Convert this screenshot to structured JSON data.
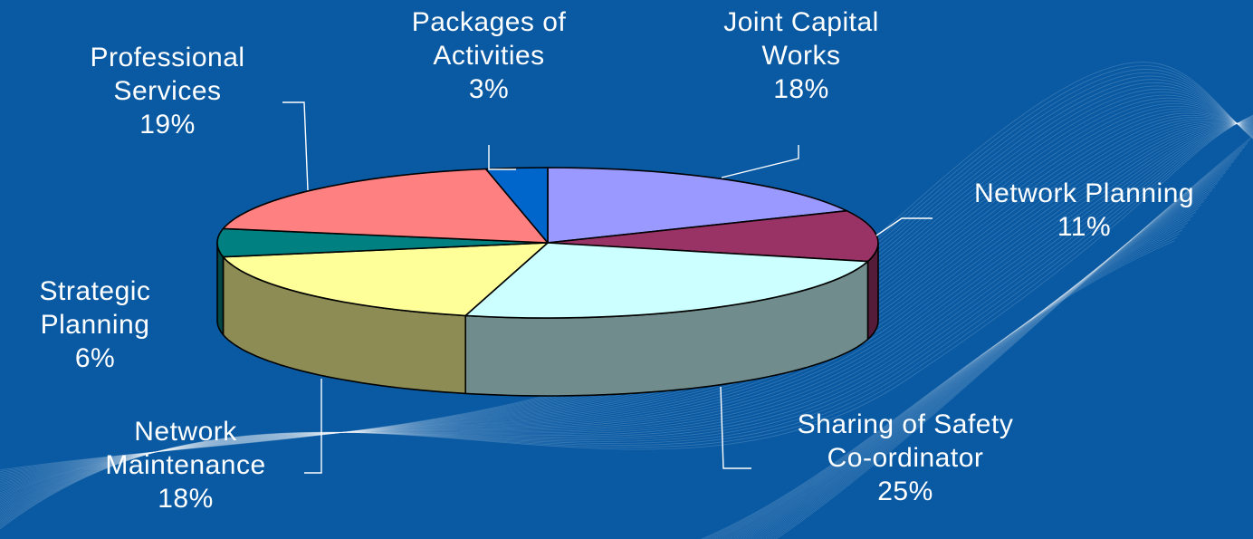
{
  "background": {
    "color": "#0a5aa3",
    "wave_color": "#ffffff"
  },
  "chart_data": {
    "type": "pie",
    "style": "3d",
    "legend": "none",
    "start_angle_deg": 0,
    "direction": "clockwise",
    "slices": [
      {
        "label_lines": [
          "Joint Capital",
          "Works"
        ],
        "value": 18,
        "value_text": "18%",
        "color": "#9999ff"
      },
      {
        "label_lines": [
          "Network Planning"
        ],
        "value": 11,
        "value_text": "11%",
        "color": "#993366"
      },
      {
        "label_lines": [
          "Sharing of Safety",
          "Co-ordinator"
        ],
        "value": 25,
        "value_text": "25%",
        "color": "#ccffff"
      },
      {
        "label_lines": [
          "Network",
          "Maintenance"
        ],
        "value": 18,
        "value_text": "18%",
        "color": "#ffff99"
      },
      {
        "label_lines": [
          "Strategic",
          "Planning"
        ],
        "value": 6,
        "value_text": "6%",
        "color": "#008080"
      },
      {
        "label_lines": [
          "Professional",
          "Services"
        ],
        "value": 19,
        "value_text": "19%",
        "color": "#ff8080"
      },
      {
        "label_lines": [
          "Packages of",
          "Activities"
        ],
        "value": 3,
        "value_text": "3%",
        "color": "#0066cc"
      }
    ]
  }
}
